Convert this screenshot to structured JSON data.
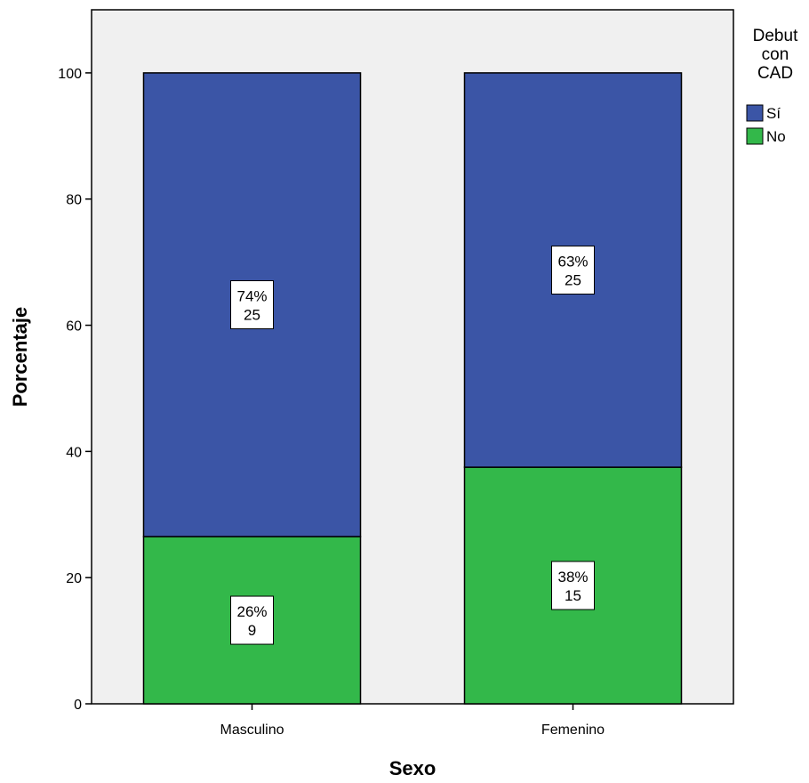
{
  "chart_data": {
    "type": "bar",
    "stacked": true,
    "xlabel": "Sexo",
    "ylabel": "Porcentaje",
    "categories": [
      "Masculino",
      "Femenino"
    ],
    "ylim": [
      0,
      110
    ],
    "yticks": [
      0,
      20,
      40,
      60,
      80,
      100
    ],
    "grid": false,
    "legend": {
      "title_lines": [
        "Debut",
        "con",
        "CAD"
      ],
      "placement": "right-top"
    },
    "series": [
      {
        "name": "No",
        "color": "#33b84a",
        "values": [
          26.5,
          37.5
        ],
        "labels": [
          {
            "pct": "26%",
            "count": "9"
          },
          {
            "pct": "38%",
            "count": "15"
          }
        ]
      },
      {
        "name": "Sí",
        "color": "#3b55a6",
        "values": [
          73.5,
          62.5
        ],
        "labels": [
          {
            "pct": "74%",
            "count": "25"
          },
          {
            "pct": "63%",
            "count": "25"
          }
        ]
      }
    ],
    "legend_order": [
      "Sí",
      "No"
    ],
    "plot_background": "#f0f0f0"
  }
}
